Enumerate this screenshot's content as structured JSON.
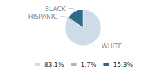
{
  "chart_data": {
    "type": "pie",
    "categories": [
      "WHITE",
      "HISPANIC",
      "BLACK"
    ],
    "values": [
      83.1,
      1.7,
      15.3
    ],
    "value_labels": [
      "83.1%",
      "1.7%",
      "15.3%"
    ],
    "colors": [
      "#cddce8",
      "#a8b8c8",
      "#2e6b8a"
    ],
    "legend": "bottom"
  }
}
